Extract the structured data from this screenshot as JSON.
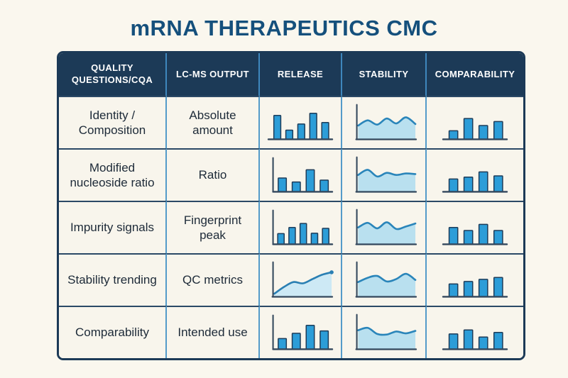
{
  "page": {
    "title": "mRNA THERAPEUTICS CMC",
    "background": "#faf7ee"
  },
  "colors": {
    "title": "#15507c",
    "header_bg": "#1c3a57",
    "header_divider": "#3e87bd",
    "body_col_divider": "#549bc9",
    "body_row_divider": "#2b4966",
    "outer_border": "#1c3a57",
    "cell_bg": "#f8f5ec",
    "bar_fill": "#2c9dd8",
    "bar_stroke": "#1d3c59",
    "axis": "#33475c",
    "wave_stroke": "#2a85ba",
    "wave_fill": "#b9e0ef",
    "line_stroke": "#2a7fb3",
    "line_fill": "#cde9f5"
  },
  "table": {
    "headers": [
      "QUALITY QUESTIONS/CQA",
      "LC-MS OUTPUT",
      "RELEASE",
      "STABILITY",
      "COMPARABILITY"
    ]
  },
  "rows": [
    {
      "cqa": "Identity / Composition",
      "output": "Absolute amount"
    },
    {
      "cqa": "Modified nucleoside ratio",
      "output": "Ratio"
    },
    {
      "cqa": "Impurity signals",
      "output": "Fingerprint peak"
    },
    {
      "cqa": "Stability trending",
      "output": "QC metrics"
    },
    {
      "cqa": "Comparability",
      "output": "Intended use"
    }
  ],
  "chart_data": [
    {
      "release": {
        "type": "bar",
        "axis_y": false,
        "values": [
          0.78,
          0.3,
          0.5,
          0.85,
          0.55
        ]
      },
      "stability": {
        "type": "area",
        "axis_y": true,
        "values": [
          0.45,
          0.62,
          0.48,
          0.68,
          0.52,
          0.72,
          0.5
        ]
      },
      "comparability": {
        "type": "bar",
        "axis_y": false,
        "values": [
          0.28,
          0.68,
          0.45,
          0.58
        ]
      }
    },
    {
      "release": {
        "type": "bar",
        "axis_y": true,
        "values": [
          0.45,
          0.32,
          0.72,
          0.38
        ]
      },
      "stability": {
        "type": "area",
        "axis_y": true,
        "values": [
          0.55,
          0.72,
          0.5,
          0.62,
          0.55,
          0.6,
          0.58
        ]
      },
      "comparability": {
        "type": "bar",
        "axis_y": false,
        "values": [
          0.42,
          0.48,
          0.65,
          0.52
        ]
      }
    },
    {
      "release": {
        "type": "bar",
        "axis_y": true,
        "values": [
          0.35,
          0.55,
          0.68,
          0.36,
          0.52
        ]
      },
      "stability": {
        "type": "area",
        "axis_y": true,
        "values": [
          0.55,
          0.7,
          0.52,
          0.72,
          0.5,
          0.58,
          0.68
        ]
      },
      "comparability": {
        "type": "bar",
        "axis_y": false,
        "values": [
          0.55,
          0.45,
          0.65,
          0.45
        ]
      }
    },
    {
      "release": {
        "type": "line",
        "axis_y": true,
        "values": [
          0.1,
          0.32,
          0.48,
          0.44,
          0.58,
          0.72,
          0.8
        ],
        "dot": true
      },
      "stability": {
        "type": "area",
        "axis_y": true,
        "values": [
          0.48,
          0.62,
          0.68,
          0.5,
          0.58,
          0.75,
          0.55
        ]
      },
      "comparability": {
        "type": "bar",
        "axis_y": false,
        "values": [
          0.42,
          0.5,
          0.57,
          0.63
        ]
      }
    },
    {
      "release": {
        "type": "bar",
        "axis_y": true,
        "values": [
          0.35,
          0.52,
          0.78,
          0.6
        ]
      },
      "stability": {
        "type": "area",
        "axis_y": true,
        "values": [
          0.62,
          0.7,
          0.5,
          0.48,
          0.58,
          0.52,
          0.6
        ]
      },
      "comparability": {
        "type": "bar",
        "axis_y": false,
        "values": [
          0.5,
          0.63,
          0.4,
          0.55
        ]
      }
    }
  ]
}
